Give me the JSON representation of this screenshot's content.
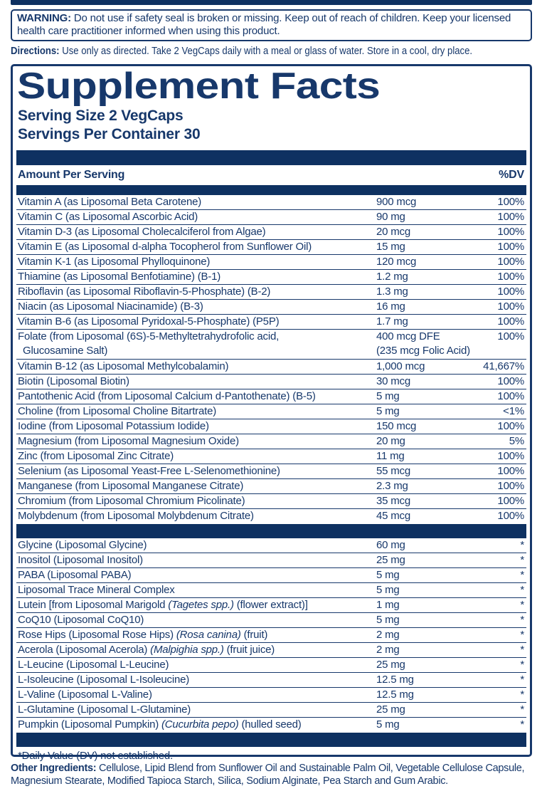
{
  "colors": {
    "navy_text": "#17386b",
    "navy_bar": "#0e3161",
    "background": "#ffffff"
  },
  "warning": {
    "label": "WARNING:",
    "text": "Do not use if safety seal is broken or missing. Keep out of reach of children. Keep your licensed health care practitioner informed when using this product."
  },
  "directions": {
    "label": "Directions:",
    "text": "Use only as directed. Take 2 VegCaps daily with a meal or glass of water. Store in a cool, dry place."
  },
  "panel": {
    "title": "Supplement Facts",
    "serving_size": "Serving Size 2 VegCaps",
    "servings_per_container": "Servings Per Container 30",
    "column_header_left": "Amount Per Serving",
    "column_header_right": "%DV",
    "footnote": "*Daily Value (DV) not established.",
    "rows_main": [
      {
        "name": "Vitamin A (as Liposomal Beta Carotene)",
        "amount": "900 mcg",
        "dv": "100%"
      },
      {
        "name": "Vitamin C (as Liposomal Ascorbic Acid)",
        "amount": "90 mg",
        "dv": "100%"
      },
      {
        "name": "Vitamin D-3 (as Liposomal Cholecalciferol from Algae)",
        "amount": "20 mcg",
        "dv": "100%"
      },
      {
        "name": "Vitamin E (as Liposomal d-alpha Tocopherol from Sunflower Oil)",
        "amount": "15 mg",
        "dv": "100%"
      },
      {
        "name": "Vitamin K-1 (as Liposomal Phylloquinone)",
        "amount": "120 mcg",
        "dv": "100%"
      },
      {
        "name": "Thiamine (as Liposomal Benfotiamine) (B-1)",
        "amount": "1.2 mg",
        "dv": "100%"
      },
      {
        "name": "Riboflavin (as Liposomal Riboflavin-5-Phosphate) (B-2)",
        "amount": "1.3 mg",
        "dv": "100%"
      },
      {
        "name": "Niacin (as Liposomal Niacinamide) (B-3)",
        "amount": "16 mg",
        "dv": "100%"
      },
      {
        "name": "Vitamin B-6 (as Liposomal Pyridoxal-5-Phosphate) (P5P)",
        "amount": "1.7 mg",
        "dv": "100%"
      },
      {
        "name": "Folate (from Liposomal (6S)-5-Methyltetrahydrofolic acid,",
        "name2": "Glucosamine Salt)",
        "amount": "400 mcg DFE",
        "amount2": "(235 mcg Folic Acid)",
        "dv": "100%"
      },
      {
        "name": "Vitamin B-12 (as Liposomal Methylcobalamin)",
        "amount": "1,000 mcg",
        "dv": "41,667%"
      },
      {
        "name": "Biotin (Liposomal Biotin)",
        "amount": "30 mcg",
        "dv": "100%"
      },
      {
        "name": "Pantothenic Acid (from Liposomal Calcium d-Pantothenate) (B-5)",
        "amount": "5 mg",
        "dv": "100%"
      },
      {
        "name": "Choline (from Liposomal Choline Bitartrate)",
        "amount": "5 mg",
        "dv": "<1%"
      },
      {
        "name": "Iodine (from Liposomal Potassium Iodide)",
        "amount": "150 mcg",
        "dv": "100%"
      },
      {
        "name": "Magnesium (from Liposomal Magnesium Oxide)",
        "amount": "20 mg",
        "dv": "5%"
      },
      {
        "name": "Zinc (from Liposomal Zinc Citrate)",
        "amount": "11 mg",
        "dv": "100%"
      },
      {
        "name": "Selenium (as Liposomal Yeast-Free L-Selenomethionine)",
        "amount": "55 mcg",
        "dv": "100%"
      },
      {
        "name": "Manganese (from Liposomal Manganese Citrate)",
        "amount": "2.3 mg",
        "dv": "100%"
      },
      {
        "name": "Chromium (from Liposomal Chromium Picolinate)",
        "amount": "35 mcg",
        "dv": "100%"
      },
      {
        "name": "Molybdenum (from Liposomal Molybdenum Citrate)",
        "amount": "45 mcg",
        "dv": "100%"
      }
    ],
    "rows_other": [
      {
        "name": "Glycine (Liposomal Glycine)",
        "amount": "60 mg",
        "dv": "*"
      },
      {
        "name": "Inositol (Liposomal Inositol)",
        "amount": "25 mg",
        "dv": "*"
      },
      {
        "name": "PABA (Liposomal PABA)",
        "amount": "5 mg",
        "dv": "*"
      },
      {
        "name": "Liposomal Trace Mineral Complex",
        "amount": "5 mg",
        "dv": "*"
      },
      {
        "name_segs": [
          [
            "Lutein [from Liposomal Marigold ",
            false
          ],
          [
            "(Tagetes spp.)",
            true
          ],
          [
            " (flower extract)]",
            false
          ]
        ],
        "amount": "1 mg",
        "dv": "*"
      },
      {
        "name": "CoQ10 (Liposomal CoQ10)",
        "amount": "5 mg",
        "dv": "*"
      },
      {
        "name_segs": [
          [
            "Rose Hips (Liposomal Rose Hips) ",
            false
          ],
          [
            "(Rosa canina)",
            true
          ],
          [
            " (fruit)",
            false
          ]
        ],
        "amount": "2 mg",
        "dv": "*"
      },
      {
        "name_segs": [
          [
            "Acerola (Liposomal Acerola) ",
            false
          ],
          [
            "(Malpighia spp.)",
            true
          ],
          [
            " (fruit juice)",
            false
          ]
        ],
        "amount": "2 mg",
        "dv": "*"
      },
      {
        "name": "L-Leucine (Liposomal L-Leucine)",
        "amount": "25 mg",
        "dv": "*"
      },
      {
        "name": "L-Isoleucine (Liposomal L-Isoleucine)",
        "amount": "12.5 mg",
        "dv": "*"
      },
      {
        "name": "L-Valine (Liposomal L-Valine)",
        "amount": "12.5 mg",
        "dv": "*"
      },
      {
        "name": "L-Glutamine (Liposomal L-Glutamine)",
        "amount": "25 mg",
        "dv": "*"
      },
      {
        "name_segs": [
          [
            "Pumpkin (Liposomal Pumpkin) ",
            false
          ],
          [
            "(Cucurbita pepo)",
            true
          ],
          [
            " (hulled seed)",
            false
          ]
        ],
        "amount": "5 mg",
        "dv": "*"
      }
    ]
  },
  "other_ingredients": {
    "label": "Other Ingredients:",
    "text": "Cellulose, Lipid Blend from Sunflower Oil and Sustainable Palm Oil, Vegetable Cellulose Capsule, Magnesium Stearate, Modified Tapioca Starch, Silica, Sodium Alginate, Pea Starch and Gum Arabic."
  }
}
